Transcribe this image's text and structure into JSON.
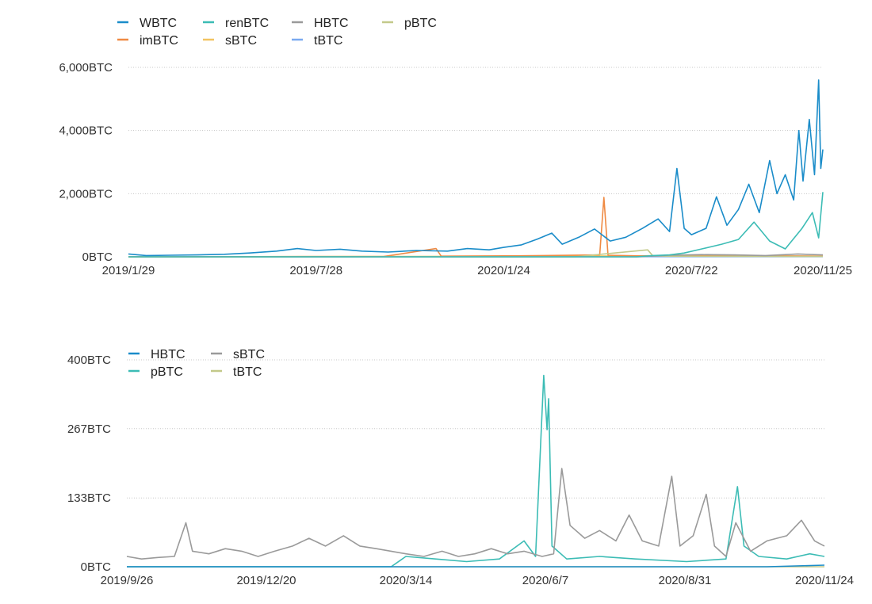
{
  "chart_data": [
    {
      "type": "line",
      "title": "",
      "xlabel": "",
      "ylabel": "",
      "ylim": [
        0,
        6000
      ],
      "y_ticks": [
        {
          "value": 0,
          "label": "0BTC"
        },
        {
          "value": 2000,
          "label": "2,000BTC"
        },
        {
          "value": 4000,
          "label": "4,000BTC"
        },
        {
          "value": 6000,
          "label": "6,000BTC"
        }
      ],
      "x_range": [
        "2019-01-29",
        "2020-11-25"
      ],
      "x_ticks": [
        {
          "date": "2019-01-29",
          "label": "2019/1/29"
        },
        {
          "date": "2019-07-28",
          "label": "2019/7/28"
        },
        {
          "date": "2020-01-24",
          "label": "2020/1/24"
        },
        {
          "date": "2020-07-22",
          "label": "2020/7/22"
        },
        {
          "date": "2020-11-25",
          "label": "2020/11/25"
        }
      ],
      "grid": true,
      "legend": "top-left",
      "series": [
        {
          "name": "WBTC",
          "color": "#1a8cc9",
          "points": [
            [
              "2019-01-29",
              90
            ],
            [
              "2019-02-15",
              40
            ],
            [
              "2019-03-10",
              50
            ],
            [
              "2019-04-05",
              60
            ],
            [
              "2019-05-01",
              80
            ],
            [
              "2019-05-25",
              120
            ],
            [
              "2019-06-20",
              180
            ],
            [
              "2019-07-10",
              260
            ],
            [
              "2019-07-28",
              200
            ],
            [
              "2019-08-20",
              240
            ],
            [
              "2019-09-10",
              180
            ],
            [
              "2019-10-05",
              150
            ],
            [
              "2019-11-01",
              200
            ],
            [
              "2019-12-01",
              180
            ],
            [
              "2019-12-20",
              260
            ],
            [
              "2020-01-10",
              220
            ],
            [
              "2020-01-24",
              300
            ],
            [
              "2020-02-10",
              380
            ],
            [
              "2020-02-25",
              560
            ],
            [
              "2020-03-10",
              750
            ],
            [
              "2020-03-20",
              400
            ],
            [
              "2020-04-05",
              620
            ],
            [
              "2020-04-20",
              880
            ],
            [
              "2020-05-05",
              500
            ],
            [
              "2020-05-20",
              620
            ],
            [
              "2020-06-05",
              900
            ],
            [
              "2020-06-20",
              1200
            ],
            [
              "2020-07-01",
              800
            ],
            [
              "2020-07-08",
              2800
            ],
            [
              "2020-07-15",
              900
            ],
            [
              "2020-07-22",
              700
            ],
            [
              "2020-08-05",
              900
            ],
            [
              "2020-08-15",
              1900
            ],
            [
              "2020-08-25",
              1000
            ],
            [
              "2020-09-05",
              1500
            ],
            [
              "2020-09-15",
              2300
            ],
            [
              "2020-09-25",
              1400
            ],
            [
              "2020-10-05",
              3050
            ],
            [
              "2020-10-12",
              2000
            ],
            [
              "2020-10-20",
              2600
            ],
            [
              "2020-10-28",
              1800
            ],
            [
              "2020-11-02",
              4000
            ],
            [
              "2020-11-06",
              2400
            ],
            [
              "2020-11-12",
              4350
            ],
            [
              "2020-11-17",
              2600
            ],
            [
              "2020-11-21",
              5600
            ],
            [
              "2020-11-23",
              2800
            ],
            [
              "2020-11-25",
              3400
            ]
          ]
        },
        {
          "name": "renBTC",
          "color": "#3cbcb5",
          "points": [
            [
              "2019-01-29",
              0
            ],
            [
              "2020-05-30",
              0
            ],
            [
              "2020-06-15",
              40
            ],
            [
              "2020-07-01",
              60
            ],
            [
              "2020-07-15",
              120
            ],
            [
              "2020-08-01",
              250
            ],
            [
              "2020-08-20",
              400
            ],
            [
              "2020-09-05",
              550
            ],
            [
              "2020-09-20",
              1100
            ],
            [
              "2020-10-05",
              500
            ],
            [
              "2020-10-20",
              250
            ],
            [
              "2020-11-05",
              900
            ],
            [
              "2020-11-15",
              1400
            ],
            [
              "2020-11-21",
              600
            ],
            [
              "2020-11-25",
              2050
            ]
          ]
        },
        {
          "name": "HBTC",
          "color": "#9a9a9a",
          "points": [
            [
              "2019-01-29",
              0
            ],
            [
              "2020-06-01",
              0
            ],
            [
              "2020-07-01",
              50
            ],
            [
              "2020-08-01",
              70
            ],
            [
              "2020-09-01",
              60
            ],
            [
              "2020-10-01",
              40
            ],
            [
              "2020-11-01",
              90
            ],
            [
              "2020-11-25",
              60
            ]
          ]
        },
        {
          "name": "pBTC",
          "color": "#c3c98a",
          "points": [
            [
              "2019-01-29",
              0
            ],
            [
              "2020-04-01",
              0
            ],
            [
              "2020-06-10",
              220
            ],
            [
              "2020-06-15",
              30
            ],
            [
              "2020-07-01",
              20
            ],
            [
              "2020-11-25",
              10
            ]
          ]
        },
        {
          "name": "imBTC",
          "color": "#ef8a43",
          "points": [
            [
              "2019-01-29",
              0
            ],
            [
              "2019-10-01",
              10
            ],
            [
              "2019-11-20",
              260
            ],
            [
              "2019-11-25",
              20
            ],
            [
              "2020-02-01",
              30
            ],
            [
              "2020-03-01",
              40
            ],
            [
              "2020-04-25",
              60
            ],
            [
              "2020-04-29",
              1880
            ],
            [
              "2020-05-03",
              50
            ],
            [
              "2020-06-01",
              30
            ],
            [
              "2020-08-01",
              40
            ],
            [
              "2020-10-01",
              30
            ],
            [
              "2020-11-25",
              20
            ]
          ]
        },
        {
          "name": "sBTC",
          "color": "#f2c461",
          "points": [
            [
              "2019-01-29",
              0
            ],
            [
              "2019-09-26",
              10
            ],
            [
              "2020-03-01",
              20
            ],
            [
              "2020-06-01",
              30
            ],
            [
              "2020-08-01",
              40
            ],
            [
              "2020-10-01",
              30
            ],
            [
              "2020-11-25",
              20
            ]
          ]
        },
        {
          "name": "tBTC",
          "color": "#7aa9f0",
          "points": [
            [
              "2019-01-29",
              0
            ],
            [
              "2020-11-25",
              5
            ]
          ]
        }
      ]
    },
    {
      "type": "line",
      "title": "",
      "xlabel": "",
      "ylabel": "",
      "ylim": [
        0,
        400
      ],
      "y_ticks": [
        {
          "value": 0,
          "label": "0BTC"
        },
        {
          "value": 133,
          "label": "133BTC"
        },
        {
          "value": 267,
          "label": "267BTC"
        },
        {
          "value": 400,
          "label": "400BTC"
        }
      ],
      "x_range": [
        "2019-09-26",
        "2020-11-24"
      ],
      "x_ticks": [
        {
          "date": "2019-09-26",
          "label": "2019/9/26"
        },
        {
          "date": "2019-12-20",
          "label": "2019/12/20"
        },
        {
          "date": "2020-03-14",
          "label": "2020/3/14"
        },
        {
          "date": "2020-06-07",
          "label": "2020/6/7"
        },
        {
          "date": "2020-08-31",
          "label": "2020/8/31"
        },
        {
          "date": "2020-11-24",
          "label": "2020/11/24"
        }
      ],
      "grid": true,
      "legend": "top-left",
      "series": [
        {
          "name": "HBTC",
          "color": "#1a8cc9",
          "points": [
            [
              "2019-09-26",
              0
            ],
            [
              "2020-10-20",
              0
            ],
            [
              "2020-11-24",
              3
            ]
          ]
        },
        {
          "name": "sBTC",
          "color": "#9a9a9a",
          "points": [
            [
              "2019-09-26",
              20
            ],
            [
              "2019-10-05",
              15
            ],
            [
              "2019-10-15",
              18
            ],
            [
              "2019-10-25",
              20
            ],
            [
              "2019-11-01",
              85
            ],
            [
              "2019-11-05",
              30
            ],
            [
              "2019-11-15",
              25
            ],
            [
              "2019-11-25",
              35
            ],
            [
              "2019-12-05",
              30
            ],
            [
              "2019-12-15",
              20
            ],
            [
              "2019-12-25",
              30
            ],
            [
              "2020-01-05",
              40
            ],
            [
              "2020-01-15",
              55
            ],
            [
              "2020-01-25",
              40
            ],
            [
              "2020-02-05",
              60
            ],
            [
              "2020-02-15",
              40
            ],
            [
              "2020-02-25",
              35
            ],
            [
              "2020-03-05",
              30
            ],
            [
              "2020-03-14",
              25
            ],
            [
              "2020-03-25",
              20
            ],
            [
              "2020-04-05",
              30
            ],
            [
              "2020-04-15",
              20
            ],
            [
              "2020-04-25",
              25
            ],
            [
              "2020-05-05",
              35
            ],
            [
              "2020-05-15",
              25
            ],
            [
              "2020-05-25",
              30
            ],
            [
              "2020-06-05",
              20
            ],
            [
              "2020-06-12",
              25
            ],
            [
              "2020-06-17",
              190
            ],
            [
              "2020-06-22",
              80
            ],
            [
              "2020-07-01",
              55
            ],
            [
              "2020-07-10",
              70
            ],
            [
              "2020-07-20",
              50
            ],
            [
              "2020-07-28",
              100
            ],
            [
              "2020-08-05",
              50
            ],
            [
              "2020-08-15",
              40
            ],
            [
              "2020-08-23",
              175
            ],
            [
              "2020-08-28",
              40
            ],
            [
              "2020-09-05",
              60
            ],
            [
              "2020-09-13",
              140
            ],
            [
              "2020-09-18",
              40
            ],
            [
              "2020-09-25",
              20
            ],
            [
              "2020-10-01",
              85
            ],
            [
              "2020-10-10",
              30
            ],
            [
              "2020-10-20",
              50
            ],
            [
              "2020-11-01",
              60
            ],
            [
              "2020-11-10",
              90
            ],
            [
              "2020-11-18",
              50
            ],
            [
              "2020-11-24",
              40
            ]
          ]
        },
        {
          "name": "pBTC",
          "color": "#3cbcb5",
          "points": [
            [
              "2019-09-26",
              0
            ],
            [
              "2020-03-05",
              0
            ],
            [
              "2020-03-14",
              20
            ],
            [
              "2020-04-01",
              15
            ],
            [
              "2020-04-20",
              10
            ],
            [
              "2020-05-10",
              15
            ],
            [
              "2020-05-25",
              50
            ],
            [
              "2020-06-01",
              20
            ],
            [
              "2020-06-06",
              370
            ],
            [
              "2020-06-08",
              265
            ],
            [
              "2020-06-09",
              325
            ],
            [
              "2020-06-11",
              40
            ],
            [
              "2020-06-20",
              15
            ],
            [
              "2020-07-10",
              20
            ],
            [
              "2020-08-01",
              15
            ],
            [
              "2020-09-01",
              10
            ],
            [
              "2020-09-25",
              15
            ],
            [
              "2020-10-02",
              155
            ],
            [
              "2020-10-06",
              40
            ],
            [
              "2020-10-15",
              20
            ],
            [
              "2020-11-01",
              15
            ],
            [
              "2020-11-15",
              25
            ],
            [
              "2020-11-24",
              20
            ]
          ]
        },
        {
          "name": "tBTC",
          "color": "#c3c98a",
          "points": [
            [
              "2019-09-26",
              0
            ],
            [
              "2020-11-24",
              0
            ]
          ]
        }
      ]
    }
  ]
}
